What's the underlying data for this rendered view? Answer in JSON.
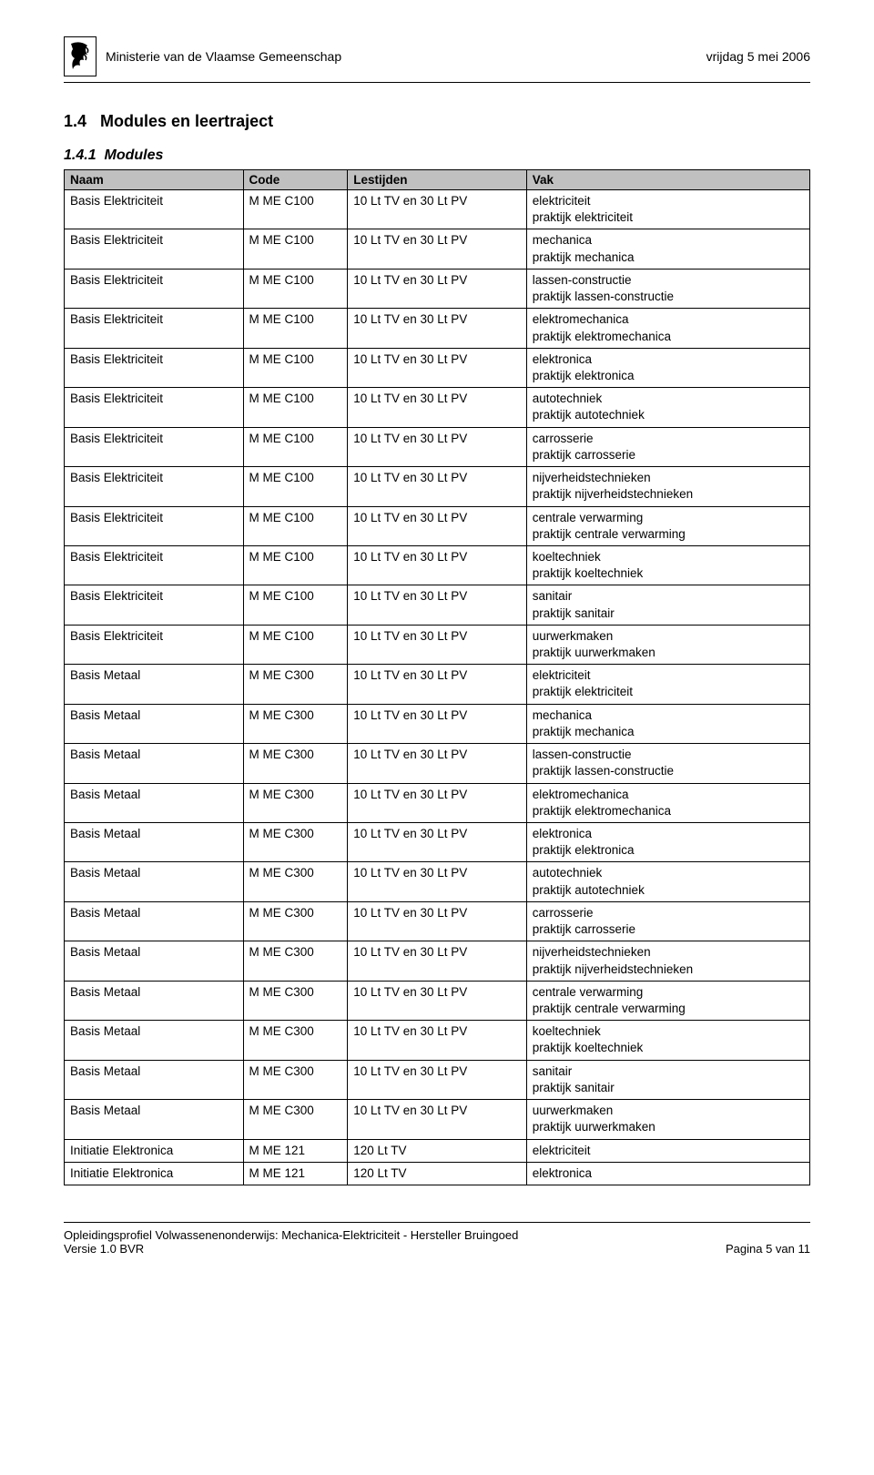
{
  "header": {
    "ministry": "Ministerie van de Vlaamse Gemeenschap",
    "date": "vrijdag 5 mei 2006"
  },
  "section": {
    "number": "1.4",
    "title": "Modules en leertraject"
  },
  "subsection": {
    "number": "1.4.1",
    "title": "Modules"
  },
  "table": {
    "headers": {
      "naam": "Naam",
      "code": "Code",
      "lestijden": "Lestijden",
      "vak": "Vak"
    },
    "rows": [
      {
        "naam": "Basis Elektriciteit",
        "code": "M ME C100",
        "lest": "10 Lt TV en 30 Lt PV",
        "vak": "elektriciteit\npraktijk elektriciteit"
      },
      {
        "naam": "Basis Elektriciteit",
        "code": "M ME C100",
        "lest": "10 Lt TV en 30 Lt PV",
        "vak": "mechanica\npraktijk mechanica"
      },
      {
        "naam": "Basis Elektriciteit",
        "code": "M ME C100",
        "lest": "10 Lt TV en 30 Lt PV",
        "vak": "lassen-constructie\npraktijk lassen-constructie"
      },
      {
        "naam": "Basis Elektriciteit",
        "code": "M ME C100",
        "lest": "10 Lt TV en 30 Lt PV",
        "vak": "elektromechanica\npraktijk elektromechanica"
      },
      {
        "naam": "Basis Elektriciteit",
        "code": "M ME C100",
        "lest": "10 Lt TV en 30 Lt PV",
        "vak": "elektronica\npraktijk elektronica"
      },
      {
        "naam": "Basis Elektriciteit",
        "code": "M ME C100",
        "lest": "10 Lt TV en 30 Lt PV",
        "vak": "autotechniek\npraktijk autotechniek"
      },
      {
        "naam": "Basis Elektriciteit",
        "code": "M ME C100",
        "lest": "10 Lt TV en 30 Lt PV",
        "vak": "carrosserie\npraktijk carrosserie"
      },
      {
        "naam": "Basis Elektriciteit",
        "code": "M ME C100",
        "lest": "10 Lt TV en 30 Lt PV",
        "vak": "nijverheidstechnieken\npraktijk nijverheidstechnieken"
      },
      {
        "naam": "Basis Elektriciteit",
        "code": "M ME C100",
        "lest": "10 Lt TV en 30 Lt PV",
        "vak": "centrale verwarming\npraktijk centrale verwarming"
      },
      {
        "naam": "Basis Elektriciteit",
        "code": "M ME C100",
        "lest": "10 Lt TV en 30 Lt PV",
        "vak": "koeltechniek\npraktijk koeltechniek"
      },
      {
        "naam": "Basis Elektriciteit",
        "code": "M ME C100",
        "lest": "10 Lt TV en 30 Lt PV",
        "vak": "sanitair\npraktijk sanitair"
      },
      {
        "naam": "Basis Elektriciteit",
        "code": "M ME C100",
        "lest": "10 Lt TV en 30 Lt PV",
        "vak": "uurwerkmaken\npraktijk uurwerkmaken"
      },
      {
        "naam": "Basis Metaal",
        "code": "M ME C300",
        "lest": "10 Lt TV en 30 Lt PV",
        "vak": "elektriciteit\npraktijk elektriciteit"
      },
      {
        "naam": "Basis Metaal",
        "code": "M ME C300",
        "lest": "10 Lt TV en 30 Lt PV",
        "vak": "mechanica\npraktijk mechanica"
      },
      {
        "naam": "Basis Metaal",
        "code": "M ME C300",
        "lest": "10 Lt TV en 30 Lt PV",
        "vak": "lassen-constructie\npraktijk lassen-constructie"
      },
      {
        "naam": "Basis Metaal",
        "code": "M ME C300",
        "lest": "10 Lt TV en 30 Lt PV",
        "vak": "elektromechanica\npraktijk elektromechanica"
      },
      {
        "naam": "Basis Metaal",
        "code": "M ME C300",
        "lest": "10 Lt TV en 30 Lt PV",
        "vak": "elektronica\npraktijk elektronica"
      },
      {
        "naam": "Basis Metaal",
        "code": "M ME C300",
        "lest": "10 Lt TV en 30 Lt PV",
        "vak": "autotechniek\npraktijk autotechniek"
      },
      {
        "naam": "Basis Metaal",
        "code": "M ME C300",
        "lest": "10 Lt TV en 30 Lt PV",
        "vak": "carrosserie\npraktijk carrosserie"
      },
      {
        "naam": "Basis Metaal",
        "code": "M ME C300",
        "lest": "10 Lt TV en 30 Lt PV",
        "vak": "nijverheidstechnieken\npraktijk nijverheidstechnieken"
      },
      {
        "naam": "Basis Metaal",
        "code": "M ME C300",
        "lest": "10 Lt TV en 30 Lt PV",
        "vak": "centrale verwarming\npraktijk centrale verwarming"
      },
      {
        "naam": "Basis Metaal",
        "code": "M ME C300",
        "lest": "10 Lt TV en 30 Lt PV",
        "vak": "koeltechniek\npraktijk koeltechniek"
      },
      {
        "naam": "Basis Metaal",
        "code": "M ME C300",
        "lest": "10 Lt TV en 30 Lt PV",
        "vak": "sanitair\npraktijk sanitair"
      },
      {
        "naam": "Basis Metaal",
        "code": "M ME C300",
        "lest": "10 Lt TV en 30 Lt PV",
        "vak": "uurwerkmaken\npraktijk uurwerkmaken"
      },
      {
        "naam": "Initiatie Elektronica",
        "code": "M ME 121",
        "lest": "120 Lt TV",
        "vak": "elektriciteit"
      },
      {
        "naam": "Initiatie Elektronica",
        "code": "M ME 121",
        "lest": "120 Lt TV",
        "vak": "elektronica"
      }
    ]
  },
  "footer": {
    "left_line1": "Opleidingsprofiel Volwassenenonderwijs: Mechanica-Elektriciteit - Hersteller Bruingoed",
    "left_line2": "Versie 1.0 BVR",
    "right": "Pagina 5 van 11"
  }
}
